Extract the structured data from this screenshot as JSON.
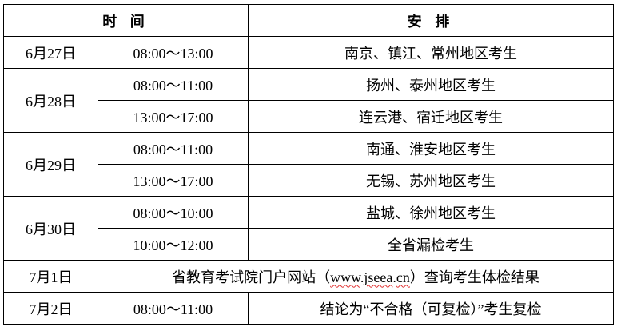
{
  "header": {
    "time": "时 间",
    "arrangement": "安 排"
  },
  "rows": [
    {
      "date": "6月27日",
      "time": "08:00～13:00",
      "task": "南京、镇江、常州地区考生"
    },
    {
      "date": "6月28日",
      "time": "08:00～11:00",
      "task": "扬州、泰州地区考生"
    },
    {
      "time": "13:00～17:00",
      "task": "连云港、宿迁地区考生"
    },
    {
      "date": "6月29日",
      "time": "08:00～11:00",
      "task": "南通、淮安地区考生"
    },
    {
      "time": "13:00～17:00",
      "task": "无锡、苏州地区考生"
    },
    {
      "date": "6月30日",
      "time": "08:00～10:00",
      "task": "盐城、徐州地区考生"
    },
    {
      "time": "10:00～12:00",
      "task": "全省漏检考生"
    },
    {
      "date": "7月1日",
      "task_pre": "省教育考试院门户网站（",
      "url_a": "www",
      "url_dot1": ".",
      "url_b": "jseea",
      "url_dot2": ".",
      "url_c": "cn",
      "task_post": "）查询考生体检结果"
    },
    {
      "date": "7月2日",
      "time": "08:00～11:00",
      "task": "结论为“不合格（可复检）”考生复检"
    }
  ]
}
